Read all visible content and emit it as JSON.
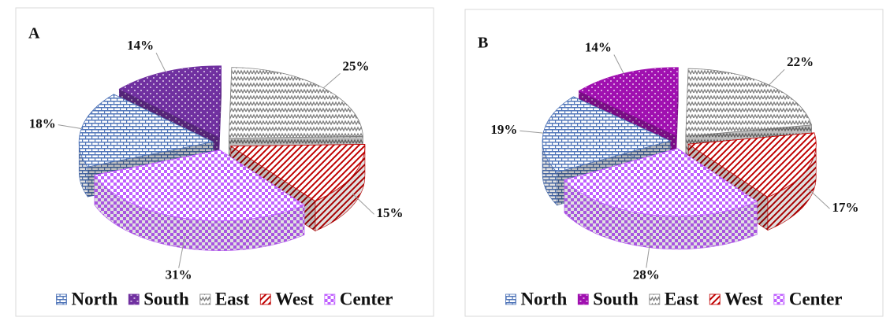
{
  "chart_data": [
    {
      "type": "pie",
      "title": "A",
      "categories": [
        "North",
        "South",
        "East",
        "West",
        "Center"
      ],
      "values": [
        18,
        14,
        25,
        15,
        31
      ],
      "value_labels": [
        "18%",
        "14%",
        "25%",
        "15%",
        "31%"
      ],
      "colors": [
        "#4f74b8",
        "#7030a0",
        "#7f7f7f",
        "#c00000",
        "#c060ff"
      ]
    },
    {
      "type": "pie",
      "title": "B",
      "categories": [
        "North",
        "South",
        "East",
        "West",
        "Center"
      ],
      "values": [
        19,
        14,
        22,
        17,
        28
      ],
      "value_labels": [
        "19%",
        "14%",
        "22%",
        "17%",
        "28%"
      ],
      "colors": [
        "#4f74b8",
        "#a010b0",
        "#7f7f7f",
        "#c00000",
        "#c060ff"
      ]
    }
  ]
}
